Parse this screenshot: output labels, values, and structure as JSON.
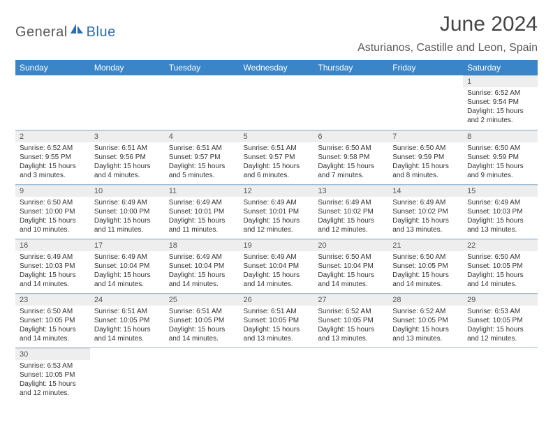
{
  "logo": {
    "word1": "General",
    "word2": "Blue"
  },
  "header": {
    "title": "June 2024",
    "subtitle": "Asturianos, Castille and Leon, Spain"
  },
  "colors": {
    "header_bg": "#3a85c8",
    "logo_grey": "#5a5a5a",
    "logo_blue": "#2a6db4",
    "row_divider": "#9cb9d6",
    "daynum_bg": "#eeeeee"
  },
  "weekdays": [
    "Sunday",
    "Monday",
    "Tuesday",
    "Wednesday",
    "Thursday",
    "Friday",
    "Saturday"
  ],
  "weeks": [
    [
      null,
      null,
      null,
      null,
      null,
      null,
      {
        "n": "1",
        "sunrise": "Sunrise: 6:52 AM",
        "sunset": "Sunset: 9:54 PM",
        "day": "Daylight: 15 hours and 2 minutes."
      }
    ],
    [
      {
        "n": "2",
        "sunrise": "Sunrise: 6:52 AM",
        "sunset": "Sunset: 9:55 PM",
        "day": "Daylight: 15 hours and 3 minutes."
      },
      {
        "n": "3",
        "sunrise": "Sunrise: 6:51 AM",
        "sunset": "Sunset: 9:56 PM",
        "day": "Daylight: 15 hours and 4 minutes."
      },
      {
        "n": "4",
        "sunrise": "Sunrise: 6:51 AM",
        "sunset": "Sunset: 9:57 PM",
        "day": "Daylight: 15 hours and 5 minutes."
      },
      {
        "n": "5",
        "sunrise": "Sunrise: 6:51 AM",
        "sunset": "Sunset: 9:57 PM",
        "day": "Daylight: 15 hours and 6 minutes."
      },
      {
        "n": "6",
        "sunrise": "Sunrise: 6:50 AM",
        "sunset": "Sunset: 9:58 PM",
        "day": "Daylight: 15 hours and 7 minutes."
      },
      {
        "n": "7",
        "sunrise": "Sunrise: 6:50 AM",
        "sunset": "Sunset: 9:59 PM",
        "day": "Daylight: 15 hours and 8 minutes."
      },
      {
        "n": "8",
        "sunrise": "Sunrise: 6:50 AM",
        "sunset": "Sunset: 9:59 PM",
        "day": "Daylight: 15 hours and 9 minutes."
      }
    ],
    [
      {
        "n": "9",
        "sunrise": "Sunrise: 6:50 AM",
        "sunset": "Sunset: 10:00 PM",
        "day": "Daylight: 15 hours and 10 minutes."
      },
      {
        "n": "10",
        "sunrise": "Sunrise: 6:49 AM",
        "sunset": "Sunset: 10:00 PM",
        "day": "Daylight: 15 hours and 11 minutes."
      },
      {
        "n": "11",
        "sunrise": "Sunrise: 6:49 AM",
        "sunset": "Sunset: 10:01 PM",
        "day": "Daylight: 15 hours and 11 minutes."
      },
      {
        "n": "12",
        "sunrise": "Sunrise: 6:49 AM",
        "sunset": "Sunset: 10:01 PM",
        "day": "Daylight: 15 hours and 12 minutes."
      },
      {
        "n": "13",
        "sunrise": "Sunrise: 6:49 AM",
        "sunset": "Sunset: 10:02 PM",
        "day": "Daylight: 15 hours and 12 minutes."
      },
      {
        "n": "14",
        "sunrise": "Sunrise: 6:49 AM",
        "sunset": "Sunset: 10:02 PM",
        "day": "Daylight: 15 hours and 13 minutes."
      },
      {
        "n": "15",
        "sunrise": "Sunrise: 6:49 AM",
        "sunset": "Sunset: 10:03 PM",
        "day": "Daylight: 15 hours and 13 minutes."
      }
    ],
    [
      {
        "n": "16",
        "sunrise": "Sunrise: 6:49 AM",
        "sunset": "Sunset: 10:03 PM",
        "day": "Daylight: 15 hours and 14 minutes."
      },
      {
        "n": "17",
        "sunrise": "Sunrise: 6:49 AM",
        "sunset": "Sunset: 10:04 PM",
        "day": "Daylight: 15 hours and 14 minutes."
      },
      {
        "n": "18",
        "sunrise": "Sunrise: 6:49 AM",
        "sunset": "Sunset: 10:04 PM",
        "day": "Daylight: 15 hours and 14 minutes."
      },
      {
        "n": "19",
        "sunrise": "Sunrise: 6:49 AM",
        "sunset": "Sunset: 10:04 PM",
        "day": "Daylight: 15 hours and 14 minutes."
      },
      {
        "n": "20",
        "sunrise": "Sunrise: 6:50 AM",
        "sunset": "Sunset: 10:04 PM",
        "day": "Daylight: 15 hours and 14 minutes."
      },
      {
        "n": "21",
        "sunrise": "Sunrise: 6:50 AM",
        "sunset": "Sunset: 10:05 PM",
        "day": "Daylight: 15 hours and 14 minutes."
      },
      {
        "n": "22",
        "sunrise": "Sunrise: 6:50 AM",
        "sunset": "Sunset: 10:05 PM",
        "day": "Daylight: 15 hours and 14 minutes."
      }
    ],
    [
      {
        "n": "23",
        "sunrise": "Sunrise: 6:50 AM",
        "sunset": "Sunset: 10:05 PM",
        "day": "Daylight: 15 hours and 14 minutes."
      },
      {
        "n": "24",
        "sunrise": "Sunrise: 6:51 AM",
        "sunset": "Sunset: 10:05 PM",
        "day": "Daylight: 15 hours and 14 minutes."
      },
      {
        "n": "25",
        "sunrise": "Sunrise: 6:51 AM",
        "sunset": "Sunset: 10:05 PM",
        "day": "Daylight: 15 hours and 14 minutes."
      },
      {
        "n": "26",
        "sunrise": "Sunrise: 6:51 AM",
        "sunset": "Sunset: 10:05 PM",
        "day": "Daylight: 15 hours and 13 minutes."
      },
      {
        "n": "27",
        "sunrise": "Sunrise: 6:52 AM",
        "sunset": "Sunset: 10:05 PM",
        "day": "Daylight: 15 hours and 13 minutes."
      },
      {
        "n": "28",
        "sunrise": "Sunrise: 6:52 AM",
        "sunset": "Sunset: 10:05 PM",
        "day": "Daylight: 15 hours and 13 minutes."
      },
      {
        "n": "29",
        "sunrise": "Sunrise: 6:53 AM",
        "sunset": "Sunset: 10:05 PM",
        "day": "Daylight: 15 hours and 12 minutes."
      }
    ],
    [
      {
        "n": "30",
        "sunrise": "Sunrise: 6:53 AM",
        "sunset": "Sunset: 10:05 PM",
        "day": "Daylight: 15 hours and 12 minutes."
      },
      null,
      null,
      null,
      null,
      null,
      null
    ]
  ]
}
